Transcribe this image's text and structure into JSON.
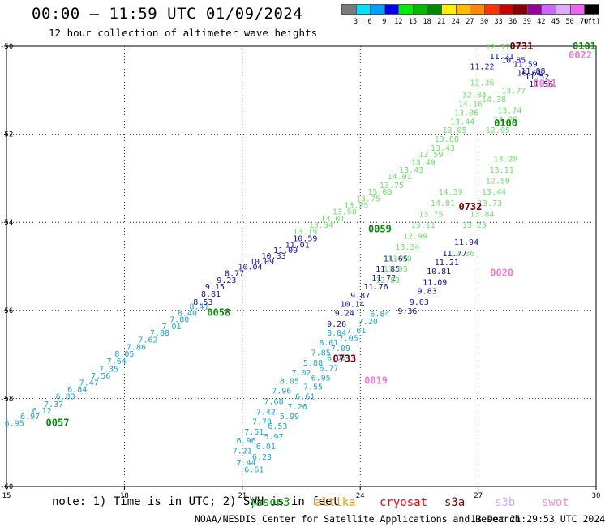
{
  "header": {
    "title": "00:00 — 11:59 UTC 01/09/2024",
    "subtitle": "12 hour collection of altimeter wave heights"
  },
  "legend": {
    "unit": "(ft)",
    "items": [
      {
        "label": "3",
        "color": "#7a7a7a"
      },
      {
        "label": "6",
        "color": "#00e0ff"
      },
      {
        "label": "9",
        "color": "#00a0ff"
      },
      {
        "label": "12",
        "color": "#0000ee"
      },
      {
        "label": "15",
        "color": "#00ee00"
      },
      {
        "label": "18",
        "color": "#00bb00"
      },
      {
        "label": "21",
        "color": "#008800"
      },
      {
        "label": "24",
        "color": "#ffee00"
      },
      {
        "label": "27",
        "color": "#ffbb00"
      },
      {
        "label": "30",
        "color": "#ff8800"
      },
      {
        "label": "33",
        "color": "#ff3300"
      },
      {
        "label": "36",
        "color": "#cc0000"
      },
      {
        "label": "39",
        "color": "#880000"
      },
      {
        "label": "42",
        "color": "#990099"
      },
      {
        "label": "45",
        "color": "#cc66ff"
      },
      {
        "label": "50",
        "color": "#ddaaff"
      },
      {
        "label": "70",
        "color": "#ee66ee"
      },
      {
        "label": "",
        "color": "#000000"
      }
    ]
  },
  "chart_data": {
    "type": "scatter",
    "xlim": [
      15,
      30
    ],
    "ylim": [
      -60,
      -50
    ],
    "x_ticks": [
      15,
      18,
      21,
      24,
      27,
      30
    ],
    "y_ticks": [
      -50,
      -52,
      -54,
      -56,
      -58,
      -60
    ],
    "grid": true,
    "colors": {
      "cyan": "#1aa6d6",
      "green": "#6ee26a",
      "blue": "#1010b0",
      "darkgreen": "#0a8a0a",
      "maroon": "#7a0000",
      "pink": "#f07ad6"
    },
    "series": [
      {
        "name": "jason3",
        "color": "cyan",
        "points": [
          [
            15.2,
            -58.55,
            "6.95"
          ],
          [
            15.6,
            -58.4,
            "6.97"
          ],
          [
            15.9,
            -58.27,
            "6.12"
          ],
          [
            16.2,
            -58.12,
            "7.37"
          ],
          [
            16.5,
            -57.95,
            "6.83"
          ],
          [
            16.8,
            -57.78,
            "6.84"
          ],
          [
            17.1,
            -57.63,
            "7.47"
          ],
          [
            17.4,
            -57.48,
            "7.56"
          ],
          [
            17.6,
            -57.32,
            "7.35"
          ],
          [
            17.8,
            -57.15,
            "7.64"
          ],
          [
            18.0,
            -56.98,
            "8.05"
          ],
          [
            18.3,
            -56.82,
            "7.86"
          ],
          [
            18.6,
            -56.66,
            "7.62"
          ],
          [
            18.9,
            -56.5,
            "7.88"
          ],
          [
            19.2,
            -56.35,
            "7.01"
          ],
          [
            19.4,
            -56.2,
            "7.80"
          ],
          [
            19.6,
            -56.05,
            "8.40"
          ],
          [
            19.9,
            -55.9,
            "8.41"
          ],
          [
            21.3,
            -59.6,
            "6.61"
          ],
          [
            21.1,
            -59.45,
            "7.44"
          ],
          [
            21.5,
            -59.32,
            "6.23"
          ],
          [
            21.0,
            -59.18,
            "7.21"
          ],
          [
            21.6,
            -59.08,
            "6.01"
          ],
          [
            21.1,
            -58.95,
            "6.96"
          ],
          [
            21.8,
            -58.86,
            "5.97"
          ],
          [
            21.3,
            -58.75,
            "7.51"
          ],
          [
            21.9,
            -58.62,
            "6.53"
          ],
          [
            21.5,
            -58.52,
            "7.70"
          ],
          [
            22.2,
            -58.4,
            "5.99"
          ],
          [
            21.6,
            -58.3,
            "7.42"
          ],
          [
            22.4,
            -58.18,
            "7.26"
          ],
          [
            21.8,
            -58.06,
            "7.68"
          ],
          [
            22.6,
            -57.95,
            "6.61"
          ],
          [
            22.0,
            -57.82,
            "7.96"
          ],
          [
            22.8,
            -57.73,
            "7.55"
          ],
          [
            22.2,
            -57.6,
            "8.05"
          ],
          [
            23.0,
            -57.52,
            "6.95"
          ],
          [
            22.5,
            -57.4,
            "7.02"
          ],
          [
            23.2,
            -57.3,
            "6.77"
          ],
          [
            22.8,
            -57.18,
            "5.88"
          ],
          [
            23.4,
            -57.06,
            "6.95"
          ],
          [
            23.0,
            -56.95,
            "7.85"
          ],
          [
            23.5,
            -56.85,
            "7.09"
          ],
          [
            23.2,
            -56.72,
            "8.01"
          ],
          [
            23.7,
            -56.62,
            "7.05"
          ],
          [
            23.4,
            -56.5,
            "8.04"
          ],
          [
            23.9,
            -56.45,
            "7.61"
          ],
          [
            24.2,
            -56.24,
            "7.20"
          ],
          [
            24.5,
            -56.07,
            "6.84"
          ]
        ]
      },
      {
        "name": "jason3",
        "color": "blue",
        "points": [
          [
            20.0,
            -55.8,
            "8.53"
          ],
          [
            20.2,
            -55.62,
            "8.81"
          ],
          [
            20.3,
            -55.45,
            "9.15"
          ],
          [
            20.6,
            -55.3,
            "9.23"
          ],
          [
            20.8,
            -55.15,
            "8.77"
          ],
          [
            21.2,
            -55.0,
            "10.04"
          ],
          [
            21.5,
            -54.88,
            "10.09"
          ],
          [
            21.8,
            -54.75,
            "10.33"
          ],
          [
            22.1,
            -54.62,
            "11.09"
          ],
          [
            22.4,
            -54.5,
            "11.01"
          ],
          [
            22.6,
            -54.36,
            "10.59"
          ],
          [
            23.4,
            -56.3,
            "9.26"
          ],
          [
            23.6,
            -56.05,
            "9.24"
          ],
          [
            23.8,
            -55.85,
            "10.14"
          ],
          [
            24.0,
            -55.65,
            "9.87"
          ],
          [
            24.4,
            -55.45,
            "11.76"
          ],
          [
            24.6,
            -55.25,
            "11.72"
          ],
          [
            24.7,
            -55.05,
            "11.85"
          ],
          [
            24.9,
            -54.82,
            "11.65"
          ],
          [
            25.2,
            -56.0,
            "9.36"
          ],
          [
            25.5,
            -55.8,
            "9.03"
          ],
          [
            25.7,
            -55.55,
            "9.83"
          ],
          [
            25.9,
            -55.35,
            "11.09"
          ],
          [
            26.0,
            -55.1,
            "10.81"
          ],
          [
            26.2,
            -54.9,
            "11.21"
          ],
          [
            26.4,
            -54.7,
            "11.77"
          ],
          [
            26.7,
            -54.44,
            "11.94"
          ],
          [
            27.1,
            -50.45,
            "11.22"
          ],
          [
            27.6,
            -50.22,
            "11.21"
          ],
          [
            27.9,
            -50.3,
            "10.85"
          ],
          [
            28.2,
            -50.4,
            "11.59"
          ],
          [
            28.4,
            -50.55,
            "11.88"
          ],
          [
            28.5,
            -50.68,
            "11.52"
          ],
          [
            28.6,
            -50.85,
            "11.56"
          ],
          [
            28.3,
            -50.6,
            "10.64"
          ]
        ]
      },
      {
        "name": "jason3",
        "color": "green",
        "points": [
          [
            22.6,
            -54.2,
            "13.19"
          ],
          [
            23.0,
            -54.05,
            "13.34"
          ],
          [
            23.3,
            -53.9,
            "13.01"
          ],
          [
            23.6,
            -53.75,
            "13.50"
          ],
          [
            23.9,
            -53.6,
            "13.25"
          ],
          [
            24.2,
            -53.45,
            "13.75"
          ],
          [
            24.5,
            -53.3,
            "15.00"
          ],
          [
            24.8,
            -53.15,
            "13.75"
          ],
          [
            25.0,
            -52.95,
            "14.01"
          ],
          [
            25.3,
            -52.8,
            "13.43"
          ],
          [
            25.6,
            -52.62,
            "13.49"
          ],
          [
            25.8,
            -52.45,
            "13.59"
          ],
          [
            26.1,
            -52.3,
            "13.43"
          ],
          [
            26.2,
            -52.1,
            "13.88"
          ],
          [
            26.4,
            -51.9,
            "13.05"
          ],
          [
            26.6,
            -51.7,
            "13.44"
          ],
          [
            26.7,
            -51.5,
            "13.06"
          ],
          [
            26.8,
            -51.3,
            "14.16"
          ],
          [
            26.9,
            -51.1,
            "12.84"
          ],
          [
            27.1,
            -50.82,
            "12.36"
          ],
          [
            27.5,
            -50.0,
            "12.17"
          ],
          [
            24.7,
            -55.3,
            "12.83"
          ],
          [
            24.9,
            -55.05,
            "13.05"
          ],
          [
            25.0,
            -54.82,
            "13.90"
          ],
          [
            25.2,
            -54.55,
            "13.34"
          ],
          [
            25.4,
            -54.3,
            "12.99"
          ],
          [
            25.6,
            -54.05,
            "13.11"
          ],
          [
            25.8,
            -53.8,
            "13.75"
          ],
          [
            26.1,
            -53.55,
            "14.81"
          ],
          [
            26.3,
            -53.3,
            "14.39"
          ],
          [
            26.6,
            -54.7,
            "12.36"
          ],
          [
            26.9,
            -54.05,
            "13.23"
          ],
          [
            27.1,
            -53.8,
            "13.84"
          ],
          [
            27.3,
            -53.55,
            "13.73"
          ],
          [
            27.4,
            -53.3,
            "13.44"
          ],
          [
            27.5,
            -53.05,
            "12.59"
          ],
          [
            27.6,
            -52.8,
            "13.11"
          ],
          [
            27.7,
            -52.55,
            "13.28"
          ],
          [
            27.5,
            -51.9,
            "12.95"
          ],
          [
            27.7,
            -51.65,
            "13.29"
          ],
          [
            27.8,
            -51.45,
            "13.74"
          ],
          [
            27.4,
            -51.2,
            "14.38"
          ],
          [
            27.9,
            -51.0,
            "13.77"
          ]
        ]
      },
      {
        "name": "jason3",
        "color": "darkgreen",
        "labels_only": true,
        "points": [
          [
            16.3,
            -58.55,
            "0057"
          ],
          [
            20.4,
            -56.05,
            "0058"
          ],
          [
            24.5,
            -54.15,
            "0059"
          ],
          [
            27.7,
            -51.75,
            "0100"
          ],
          [
            29.7,
            -50.0,
            "0101"
          ]
        ]
      },
      {
        "name": "cryosat",
        "color": "maroon",
        "labels_only": true,
        "points": [
          [
            23.6,
            -57.1,
            "0733"
          ],
          [
            26.8,
            -53.65,
            "0732"
          ],
          [
            28.1,
            -50.0,
            "0731"
          ]
        ]
      },
      {
        "name": "swot",
        "color": "pink",
        "labels_only": true,
        "points": [
          [
            24.4,
            -57.6,
            "0019"
          ],
          [
            27.6,
            -55.15,
            "0020"
          ],
          [
            28.7,
            -50.85,
            "0021"
          ],
          [
            29.6,
            -50.2,
            "0022"
          ]
        ]
      }
    ]
  },
  "note": "note: 1) Time is in UTC; 2) SWH is in feet",
  "satellites": [
    {
      "name": "jason3",
      "color": "#00aa00"
    },
    {
      "name": "altika",
      "color": "#ff9900"
    },
    {
      "name": "cryosat",
      "color": "#ff0000"
    },
    {
      "name": "s3a",
      "color": "#880000"
    },
    {
      "name": "s3b",
      "color": "#ccaaff"
    },
    {
      "name": "swot",
      "color": "#ff88dd"
    }
  ],
  "footer": {
    "credit": "NOAA/NESDIS Center for Satellite Applications and Research",
    "timestamp": "13 Dec 21:29:53 UTC 2024"
  }
}
